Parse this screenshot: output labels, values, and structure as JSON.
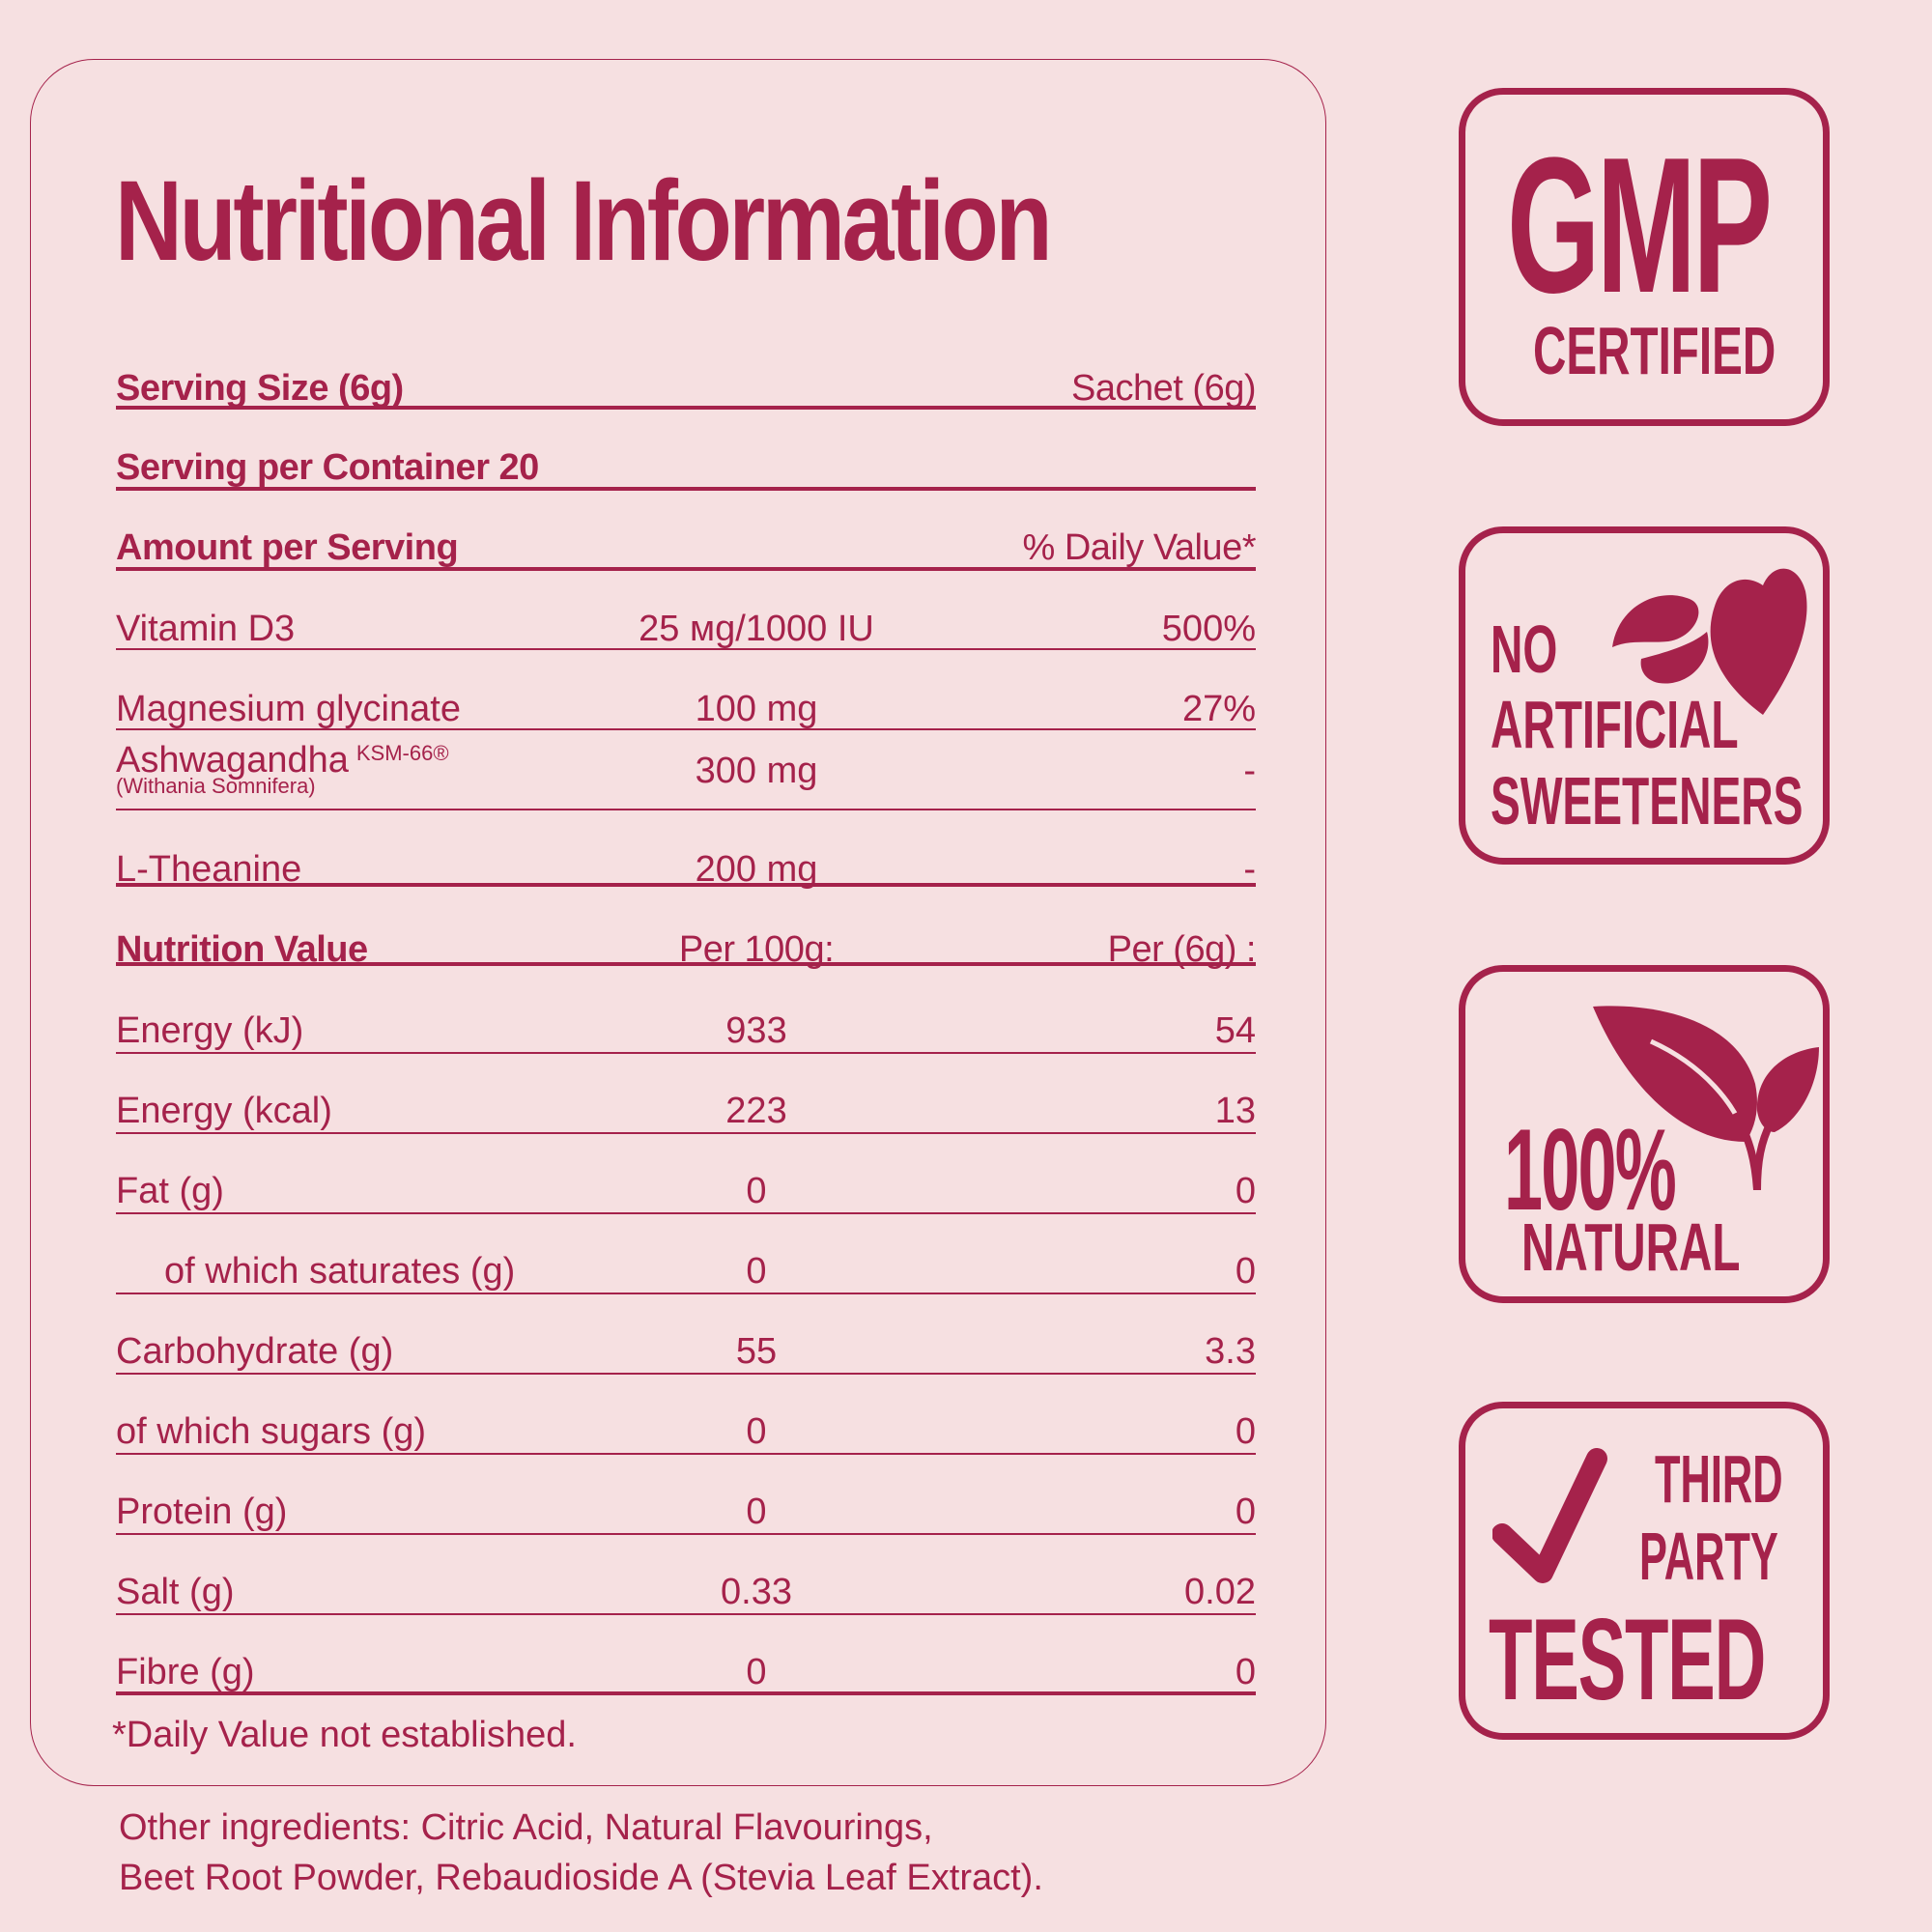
{
  "title": "Nutritional Information",
  "serving": {
    "label": "Serving Size (6g)",
    "value": "Sachet (6g)"
  },
  "container": {
    "label": "Serving per Container 20"
  },
  "amount_header": {
    "label": "Amount per Serving",
    "value": "% Daily Value*"
  },
  "ingredients": [
    {
      "name": "Vitamin D3",
      "amount": "25 мg/1000 IU",
      "dv": "500%"
    },
    {
      "name": "Magnesium glycinate",
      "amount": "100 mg",
      "dv": "27%"
    },
    {
      "name": "Ashwagandha",
      "mark": "KSM-66®",
      "sub": "(Withania Somnifera)",
      "amount": "300 mg",
      "dv": "-"
    },
    {
      "name": "L-Theanine",
      "amount": "200 mg",
      "dv": "-"
    }
  ],
  "nutrition_header": {
    "label": "Nutrition Value",
    "per100": "Per 100g:",
    "perServing": "Per (6g) :"
  },
  "nutrition": [
    {
      "name": "Energy (kJ)",
      "per100": "933",
      "perServing": "54"
    },
    {
      "name": "Energy (kcal)",
      "per100": "223",
      "perServing": "13"
    },
    {
      "name": "Fat (g)",
      "per100": "0",
      "perServing": "0"
    },
    {
      "name": "of which saturates (g)",
      "per100": "0",
      "perServing": "0"
    },
    {
      "name": "Carbohydrate (g)",
      "per100": "55",
      "perServing": "3.3"
    },
    {
      "name": "of which sugars (g)",
      "per100": "0",
      "perServing": "0"
    },
    {
      "name": "Protein (g)",
      "per100": "0",
      "perServing": "0"
    },
    {
      "name": "Salt (g)",
      "per100": "0.33",
      "perServing": "0.02"
    },
    {
      "name": "Fibre (g)",
      "per100": "0",
      "perServing": "0"
    }
  ],
  "footnote": "*Daily Value not established.",
  "other_ingredients": [
    "Other ingredients: Citric Acid, Natural Flavourings,",
    "Beet Root Powder, Rebaudioside A (Stevia Leaf Extract)."
  ],
  "badges": {
    "gmp": {
      "line1": "GMP",
      "line2": "CERTIFIED"
    },
    "sweeteners": {
      "line1": "NO",
      "line2": "ARTIFICIAL",
      "line3": "SWEETENERS",
      "icon": "nut-and-leaf-icon"
    },
    "natural": {
      "line1": "100%",
      "line2": "NATURAL",
      "icon": "sprout-leaves-icon"
    },
    "tested": {
      "line1": "THIRD",
      "line2": "PARTY",
      "line3": "TESTED",
      "icon": "checkmark-icon"
    }
  },
  "colors": {
    "background": "#f6e0e1",
    "accent": "#a5224b"
  }
}
